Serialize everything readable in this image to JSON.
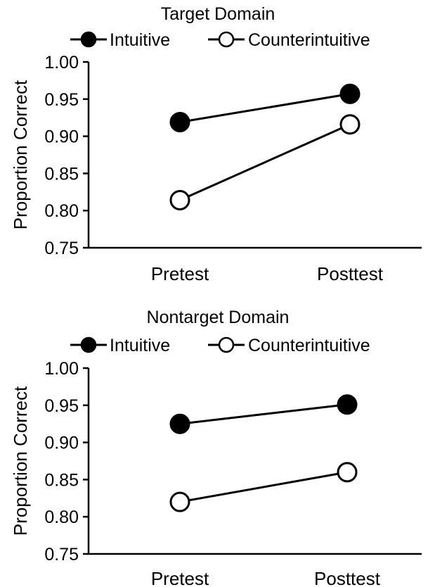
{
  "chart_data": [
    {
      "type": "line",
      "title": "Target Domain",
      "ylabel": "Proportion Correct",
      "xlabel": "",
      "categories": [
        "Pretest",
        "Posttest"
      ],
      "ylim": [
        0.75,
        1.0
      ],
      "yticks": [
        "0.75",
        "0.80",
        "0.85",
        "0.90",
        "0.95",
        "1.00"
      ],
      "ytick_values": [
        0.75,
        0.8,
        0.85,
        0.9,
        0.95,
        1.0
      ],
      "grid": false,
      "legend": "top",
      "series": [
        {
          "name": "Intuitive",
          "values": [
            0.919,
            0.957
          ],
          "marker": "filled"
        },
        {
          "name": "Counterintuitive",
          "values": [
            0.814,
            0.916
          ],
          "marker": "open"
        }
      ]
    },
    {
      "type": "line",
      "title": "Nontarget Domain",
      "ylabel": "Proportion Correct",
      "xlabel": "",
      "categories": [
        "Pretest",
        "Posttest"
      ],
      "ylim": [
        0.75,
        1.0
      ],
      "yticks": [
        "0.75",
        "0.80",
        "0.85",
        "0.90",
        "0.95",
        "1.00"
      ],
      "ytick_values": [
        0.75,
        0.8,
        0.85,
        0.9,
        0.95,
        1.0
      ],
      "grid": false,
      "legend": "top",
      "series": [
        {
          "name": "Intuitive",
          "values": [
            0.925,
            0.951
          ],
          "marker": "filled"
        },
        {
          "name": "Counterintuitive",
          "values": [
            0.82,
            0.86
          ],
          "marker": "open"
        }
      ]
    }
  ]
}
